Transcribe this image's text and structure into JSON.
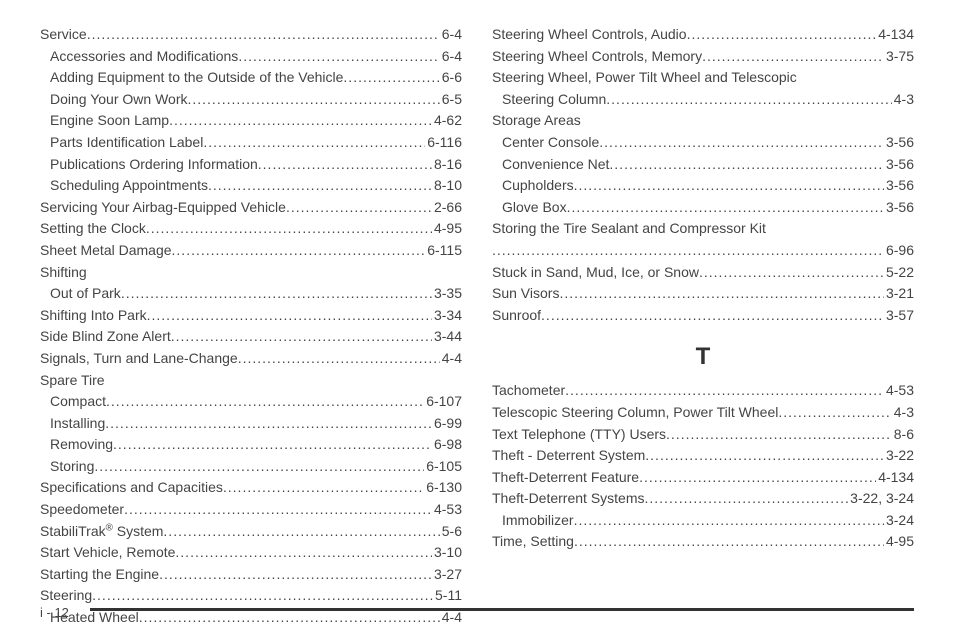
{
  "footer": "i - 12",
  "left": [
    {
      "label": "Service",
      "page": "6-4",
      "indent": 0
    },
    {
      "label": "Accessories and Modifications",
      "page": "6-4",
      "indent": 1
    },
    {
      "label": "Adding Equipment to the Outside of the Vehicle",
      "page": "6-6",
      "indent": 1
    },
    {
      "label": "Doing Your Own Work",
      "page": "6-5",
      "indent": 1
    },
    {
      "label": "Engine Soon Lamp",
      "page": "4-62",
      "indent": 1
    },
    {
      "label": "Parts Identification Label",
      "page": "6-116",
      "indent": 1
    },
    {
      "label": "Publications Ordering Information",
      "page": "8-16",
      "indent": 1
    },
    {
      "label": "Scheduling Appointments",
      "page": "8-10",
      "indent": 1
    },
    {
      "label": "Servicing Your Airbag-Equipped Vehicle",
      "page": "2-66",
      "indent": 0
    },
    {
      "label": "Setting the Clock",
      "page": "4-95",
      "indent": 0
    },
    {
      "label": "Sheet Metal Damage",
      "page": "6-115",
      "indent": 0
    },
    {
      "label": "Shifting",
      "page": "",
      "indent": 0,
      "noPage": true
    },
    {
      "label": "Out of Park",
      "page": "3-35",
      "indent": 1
    },
    {
      "label": "Shifting Into Park",
      "page": "3-34",
      "indent": 0
    },
    {
      "label": "Side Blind Zone Alert",
      "page": "3-44",
      "indent": 0
    },
    {
      "label": "Signals, Turn and Lane-Change",
      "page": "4-4",
      "indent": 0
    },
    {
      "label": "Spare Tire",
      "page": "",
      "indent": 0,
      "noPage": true
    },
    {
      "label": "Compact",
      "page": "6-107",
      "indent": 1
    },
    {
      "label": "Installing",
      "page": "6-99",
      "indent": 1
    },
    {
      "label": "Removing",
      "page": "6-98",
      "indent": 1
    },
    {
      "label": "Storing",
      "page": "6-105",
      "indent": 1
    },
    {
      "label": "Specifications and Capacities",
      "page": "6-130",
      "indent": 0
    },
    {
      "label": "Speedometer",
      "page": "4-53",
      "indent": 0
    },
    {
      "label": "StabiliTrak|SUP|®|/SUP| System",
      "page": "5-6",
      "indent": 0
    },
    {
      "label": "Start Vehicle, Remote",
      "page": "3-10",
      "indent": 0
    },
    {
      "label": "Starting the Engine",
      "page": "3-27",
      "indent": 0
    },
    {
      "label": "Steering",
      "page": "5-11",
      "indent": 0
    },
    {
      "label": "Heated Wheel",
      "page": "4-4",
      "indent": 1
    }
  ],
  "right": [
    {
      "label": "Steering Wheel Controls, Audio",
      "page": "4-134",
      "indent": 0
    },
    {
      "label": "Steering Wheel Controls, Memory",
      "page": "3-75",
      "indent": 0
    },
    {
      "label": "Steering Wheel, Power Tilt Wheel and Telescopic",
      "page": "",
      "indent": 0,
      "noPage": true
    },
    {
      "label": "Steering Column",
      "page": "4-3",
      "indent": 1
    },
    {
      "label": "Storage Areas",
      "page": "",
      "indent": 0,
      "noPage": true
    },
    {
      "label": "Center Console",
      "page": "3-56",
      "indent": 1
    },
    {
      "label": "Convenience Net",
      "page": "3-56",
      "indent": 1
    },
    {
      "label": "Cupholders",
      "page": "3-56",
      "indent": 1
    },
    {
      "label": "Glove Box",
      "page": "3-56",
      "indent": 1
    },
    {
      "label": "Storing the Tire Sealant and Compressor Kit",
      "page": "",
      "indent": 0,
      "noPage": true
    },
    {
      "label": "",
      "page": "6-96",
      "indent": 0
    },
    {
      "label": "Stuck in Sand, Mud, Ice, or Snow",
      "page": "5-22",
      "indent": 0
    },
    {
      "label": "Sun Visors",
      "page": "3-21",
      "indent": 0
    },
    {
      "label": "Sunroof",
      "page": "3-57",
      "indent": 0
    },
    {
      "heading": "T"
    },
    {
      "label": "Tachometer",
      "page": "4-53",
      "indent": 0
    },
    {
      "label": "Telescopic Steering Column, Power Tilt Wheel",
      "page": "4-3",
      "indent": 0
    },
    {
      "label": "Text Telephone (TTY) Users",
      "page": "8-6",
      "indent": 0
    },
    {
      "label": "Theft - Deterrent System",
      "page": "3-22",
      "indent": 0
    },
    {
      "label": "Theft-Deterrent Feature",
      "page": "4-134",
      "indent": 0
    },
    {
      "label": "Theft-Deterrent Systems",
      "page": "3-22, 3-24",
      "indent": 0
    },
    {
      "label": "Immobilizer",
      "page": "3-24",
      "indent": 1
    },
    {
      "label": "Time, Setting",
      "page": "4-95",
      "indent": 0
    }
  ]
}
